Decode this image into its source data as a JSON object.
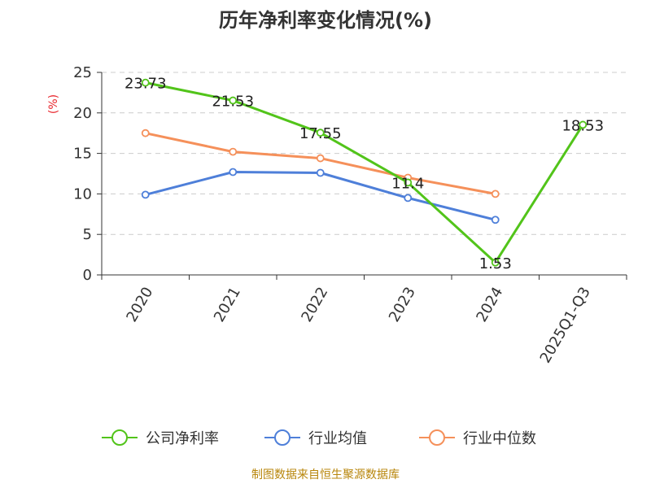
{
  "chart_data": {
    "type": "line",
    "title": "历年净利率变化情况(%)",
    "ylabel": "(%)",
    "categories": [
      "2020",
      "2021",
      "2022",
      "2023",
      "2024",
      "2025Q1-Q3"
    ],
    "yticks": [
      "0",
      "5",
      "10",
      "15",
      "20",
      "25"
    ],
    "ylim": [
      0,
      25
    ],
    "grid": true,
    "legend_position": "bottom",
    "series": [
      {
        "name": "公司净利率",
        "color": "#52c41a",
        "values": [
          23.73,
          21.53,
          17.55,
          11.4,
          1.53,
          18.53
        ],
        "labels": [
          "23.73",
          "21.53",
          "17.55",
          "11.4",
          "1.53",
          "18.53"
        ]
      },
      {
        "name": "行业均值",
        "color": "#4e7fd9",
        "values": [
          9.9,
          12.7,
          12.6,
          9.5,
          6.8,
          null
        ]
      },
      {
        "name": "行业中位数",
        "color": "#f5905a",
        "values": [
          17.5,
          15.2,
          14.4,
          12.0,
          10.0,
          null
        ]
      }
    ],
    "source": "制图数据来自恒生聚源数据库"
  }
}
